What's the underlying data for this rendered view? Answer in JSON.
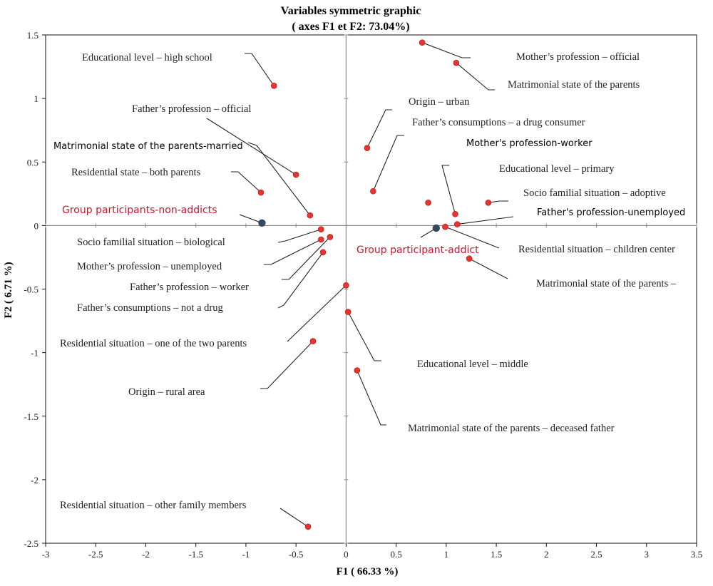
{
  "chart_data": {
    "type": "scatter",
    "title": "Variables symmetric graphic",
    "subtitle": "( axes F1 et F2: 73.04%)",
    "xlabel": "F1 ( 66.33 %)",
    "ylabel": "F2 ( 6.71 %)",
    "xlim": [
      -3,
      3.5
    ],
    "ylim": [
      -2.5,
      1.5
    ],
    "xticks": [
      "-3",
      "-2.5",
      "-2",
      "-1.5",
      "-1",
      "-0.5",
      "0",
      "0.5",
      "1",
      "1.5",
      "2",
      "2.5",
      "3",
      "3.5"
    ],
    "yticks": [
      "1.5",
      "1",
      "0.5",
      "0",
      "-0.5",
      "-1",
      "-1.5",
      "-2",
      "-2.5"
    ],
    "grid": false,
    "colors": {
      "modality": "#e8332f",
      "group": "#34495e",
      "group_label": "#d0142c"
    },
    "points": [
      {
        "label": "Educational level – high school",
        "x": -0.72,
        "y": 1.1
      },
      {
        "label": "Father’s profession – official",
        "x": -0.5,
        "y": 0.4
      },
      {
        "label": "Matrimonial state of the parents-married",
        "x": -0.36,
        "y": 0.08
      },
      {
        "label": "Residential state – both parents",
        "x": -0.85,
        "y": 0.26
      },
      {
        "label": "Socio familial situation – biological",
        "x": -0.25,
        "y": -0.03
      },
      {
        "label": "Mother’s profession – unemployed",
        "x": -0.25,
        "y": -0.11
      },
      {
        "label": "Father’s profession – worker",
        "x": -0.16,
        "y": -0.09
      },
      {
        "label": "Father’s consumptions – not a drug",
        "x": -0.23,
        "y": -0.21
      },
      {
        "label": "Residential situation – one of the two parents",
        "x": 0,
        "y": -0.47
      },
      {
        "label": "Origin – rural area",
        "x": -0.33,
        "y": -0.91
      },
      {
        "label": "Residential situation – other family members",
        "x": -0.38,
        "y": -2.37
      },
      {
        "label": "Mother’s profession – official",
        "x": 0.76,
        "y": 1.44
      },
      {
        "label": "Matrimonial state of the parents",
        "x": 1.1,
        "y": 1.28
      },
      {
        "label": "Origin – urban",
        "x": 0.21,
        "y": 0.61
      },
      {
        "label": "Father’s consumptions – a drug consumer",
        "x": 0.27,
        "y": 0.27
      },
      {
        "label": "Mother's profession-worker",
        "x": 0.82,
        "y": 0.18
      },
      {
        "label": "Educational level – primary",
        "x": 1.09,
        "y": 0.09
      },
      {
        "label": "Socio familial situation – adoptive",
        "x": 1.42,
        "y": 0.18
      },
      {
        "label": "Father's profession-unemployed",
        "x": 1.11,
        "y": 0.01
      },
      {
        "label": "Residential situation – children center",
        "x": 0.99,
        "y": -0.01
      },
      {
        "label": "Matrimonial state of the parents –",
        "x": 1.23,
        "y": -0.26
      },
      {
        "label": "Educational level – middle",
        "x": 0.02,
        "y": -0.68
      },
      {
        "label": "Matrimonial state of the parents – deceased father",
        "x": 0.11,
        "y": -1.14
      }
    ],
    "groups": [
      {
        "label": "Group participants-non-addicts",
        "x": -0.84,
        "y": 0.02
      },
      {
        "label": "Group participant-addict",
        "x": 0.9,
        "y": -0.02
      }
    ]
  }
}
